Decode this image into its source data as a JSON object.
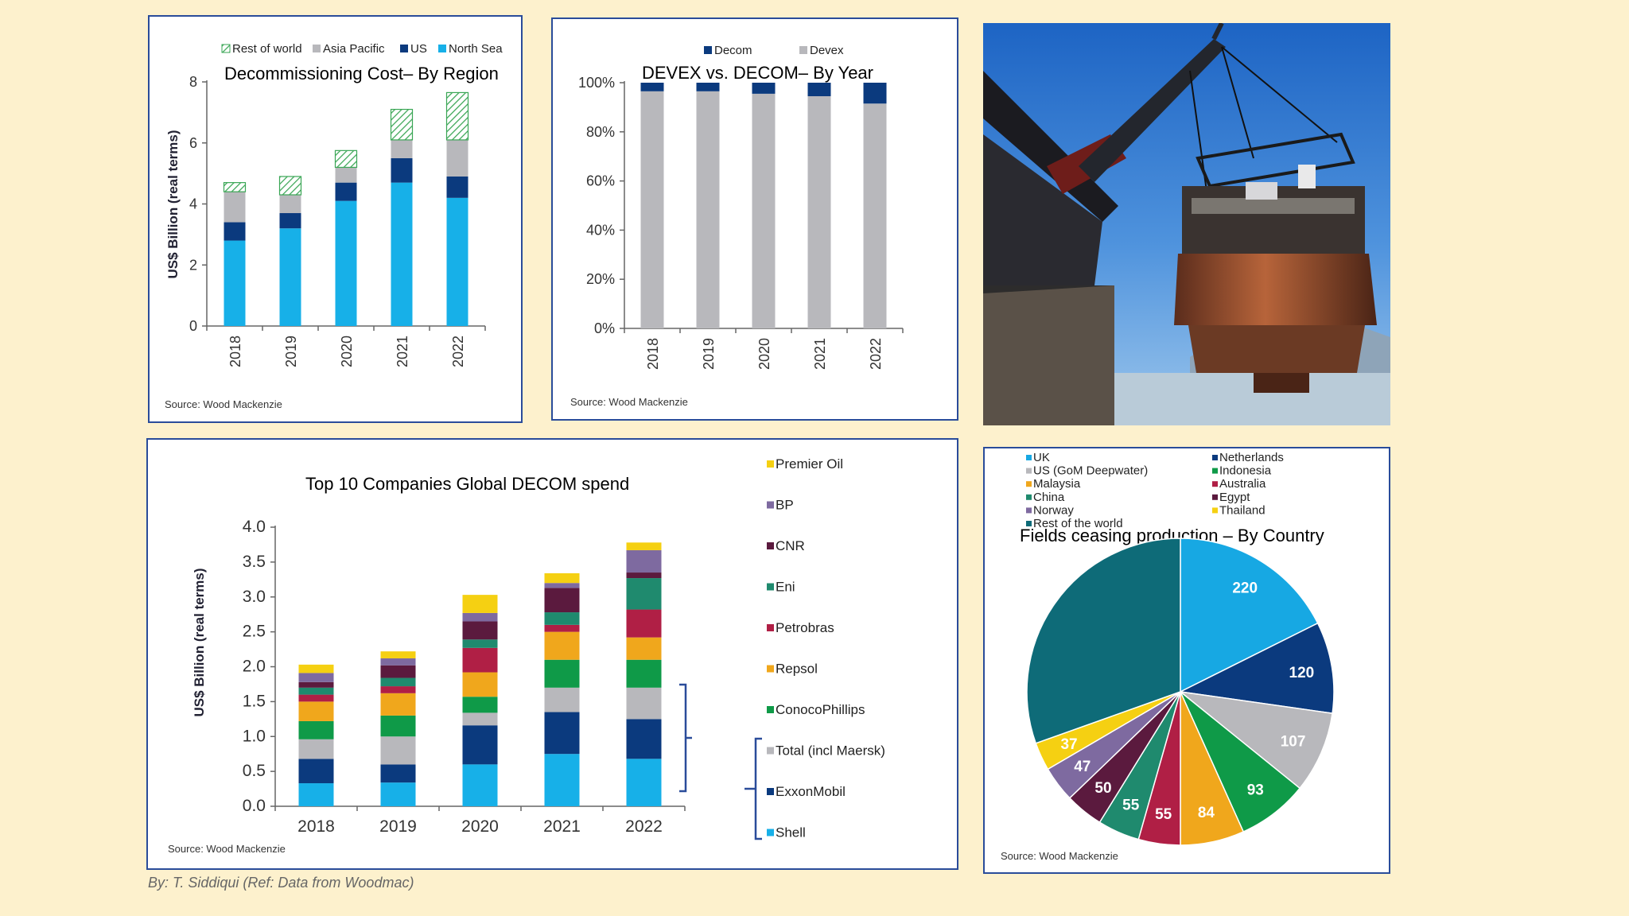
{
  "footer": "By: T. Siddiqui (Ref: Data from Woodmac)",
  "chart_data": [
    {
      "id": "decom_region",
      "type": "bar",
      "stacked": true,
      "title": "Decommissioning Cost– By Region",
      "ylabel": "US$ Billion (real terms)",
      "source": "Source: Wood Mackenzie",
      "categories": [
        "2018",
        "2019",
        "2020",
        "2021",
        "2022"
      ],
      "ylim": [
        0,
        8
      ],
      "yticks": [
        "0",
        "2",
        "4",
        "6",
        "8"
      ],
      "legend_position": "top",
      "series": [
        {
          "name": "North Sea",
          "color": "#17b0e8",
          "values": [
            2.8,
            3.2,
            4.1,
            4.7,
            4.2
          ]
        },
        {
          "name": "US",
          "color": "#0b3a7e",
          "values": [
            0.6,
            0.5,
            0.6,
            0.8,
            0.7
          ]
        },
        {
          "name": "Asia Pacific",
          "color": "#b8b8bc",
          "values": [
            1.0,
            0.6,
            0.5,
            0.6,
            1.2
          ]
        },
        {
          "name": "Rest of world",
          "color": "#3aa655",
          "pattern": "hatch",
          "values": [
            0.3,
            0.6,
            0.55,
            1.0,
            1.55
          ]
        }
      ]
    },
    {
      "id": "devex_decom",
      "type": "bar",
      "stacked": true,
      "title": "DEVEX vs. DECOM– By Year",
      "source": "Source: Wood Mackenzie",
      "categories": [
        "2018",
        "2019",
        "2020",
        "2021",
        "2022"
      ],
      "ylim": [
        0,
        100
      ],
      "yticks": [
        "0%",
        "20%",
        "40%",
        "60%",
        "80%",
        "100%"
      ],
      "legend_position": "top",
      "series": [
        {
          "name": "Devex",
          "color": "#b8b8bc",
          "values": [
            96.5,
            96.5,
            95.5,
            94.5,
            91.5
          ]
        },
        {
          "name": "Decom",
          "color": "#0b3a7e",
          "values": [
            3.5,
            3.5,
            4.5,
            5.5,
            8.5
          ]
        }
      ]
    },
    {
      "id": "top10",
      "type": "bar",
      "stacked": true,
      "title": "Top 10 Companies Global DECOM spend",
      "ylabel": "US$ Billion (real terms)",
      "source": "Source: Wood Mackenzie",
      "categories": [
        "2018",
        "2019",
        "2020",
        "2021",
        "2022"
      ],
      "ylim": [
        0,
        4
      ],
      "yticks": [
        "0.0",
        "0.5",
        "1.0",
        "1.5",
        "2.0",
        "2.5",
        "3.0",
        "3.5",
        "4.0"
      ],
      "legend_position": "right",
      "series": [
        {
          "name": "Shell",
          "color": "#17b0e8",
          "values": [
            0.33,
            0.34,
            0.6,
            0.75,
            0.68
          ]
        },
        {
          "name": "ExxonMobil",
          "color": "#0b3a7e",
          "values": [
            0.35,
            0.26,
            0.56,
            0.6,
            0.57
          ]
        },
        {
          "name": "Total (incl Maersk)",
          "color": "#b8b8bc",
          "values": [
            0.28,
            0.4,
            0.18,
            0.35,
            0.45
          ]
        },
        {
          "name": "ConocoPhillips",
          "color": "#0f9a48",
          "values": [
            0.26,
            0.3,
            0.23,
            0.4,
            0.4
          ]
        },
        {
          "name": "Repsol",
          "color": "#f0a71c",
          "values": [
            0.28,
            0.32,
            0.35,
            0.4,
            0.32
          ]
        },
        {
          "name": "Petrobras",
          "color": "#b01f45",
          "values": [
            0.1,
            0.1,
            0.35,
            0.1,
            0.4
          ]
        },
        {
          "name": "Eni",
          "color": "#1f8a6e",
          "values": [
            0.1,
            0.12,
            0.12,
            0.18,
            0.45
          ]
        },
        {
          "name": "CNR",
          "color": "#5b1a3e",
          "values": [
            0.08,
            0.18,
            0.26,
            0.35,
            0.08
          ]
        },
        {
          "name": "BP",
          "color": "#7e6aa0",
          "values": [
            0.13,
            0.1,
            0.12,
            0.07,
            0.32
          ]
        },
        {
          "name": "Premier Oil",
          "color": "#f5d012",
          "values": [
            0.12,
            0.1,
            0.26,
            0.14,
            0.11
          ]
        }
      ]
    },
    {
      "id": "fields_country",
      "type": "pie",
      "title": "Fields ceasing production – By Country",
      "source": "Source: Wood Mackenzie",
      "legend_position": "top",
      "slices": [
        {
          "name": "UK",
          "color": "#17a8e3",
          "value": 220,
          "label": "220"
        },
        {
          "name": "Netherlands",
          "color": "#0b3a7e",
          "value": 120,
          "label": "120"
        },
        {
          "name": "US (GoM Deepwater)",
          "color": "#b8b8bc",
          "value": 107,
          "label": "107"
        },
        {
          "name": "Indonesia",
          "color": "#0f9a48",
          "value": 93,
          "label": "93"
        },
        {
          "name": "Malaysia",
          "color": "#f0a71c",
          "value": 84,
          "label": "84"
        },
        {
          "name": "Australia",
          "color": "#b01f45",
          "value": 55,
          "label": "55"
        },
        {
          "name": "China",
          "color": "#1f8a6e",
          "value": 55,
          "label": "55"
        },
        {
          "name": "Egypt",
          "color": "#5b1a3e",
          "value": 50,
          "label": "50"
        },
        {
          "name": "Norway",
          "color": "#7e6aa0",
          "value": 47,
          "label": "47"
        },
        {
          "name": "Thailand",
          "color": "#f5d012",
          "value": 37,
          "label": "37"
        },
        {
          "name": "Rest of the world",
          "color": "#0e6b78",
          "value": 380,
          "label": ""
        }
      ]
    }
  ]
}
